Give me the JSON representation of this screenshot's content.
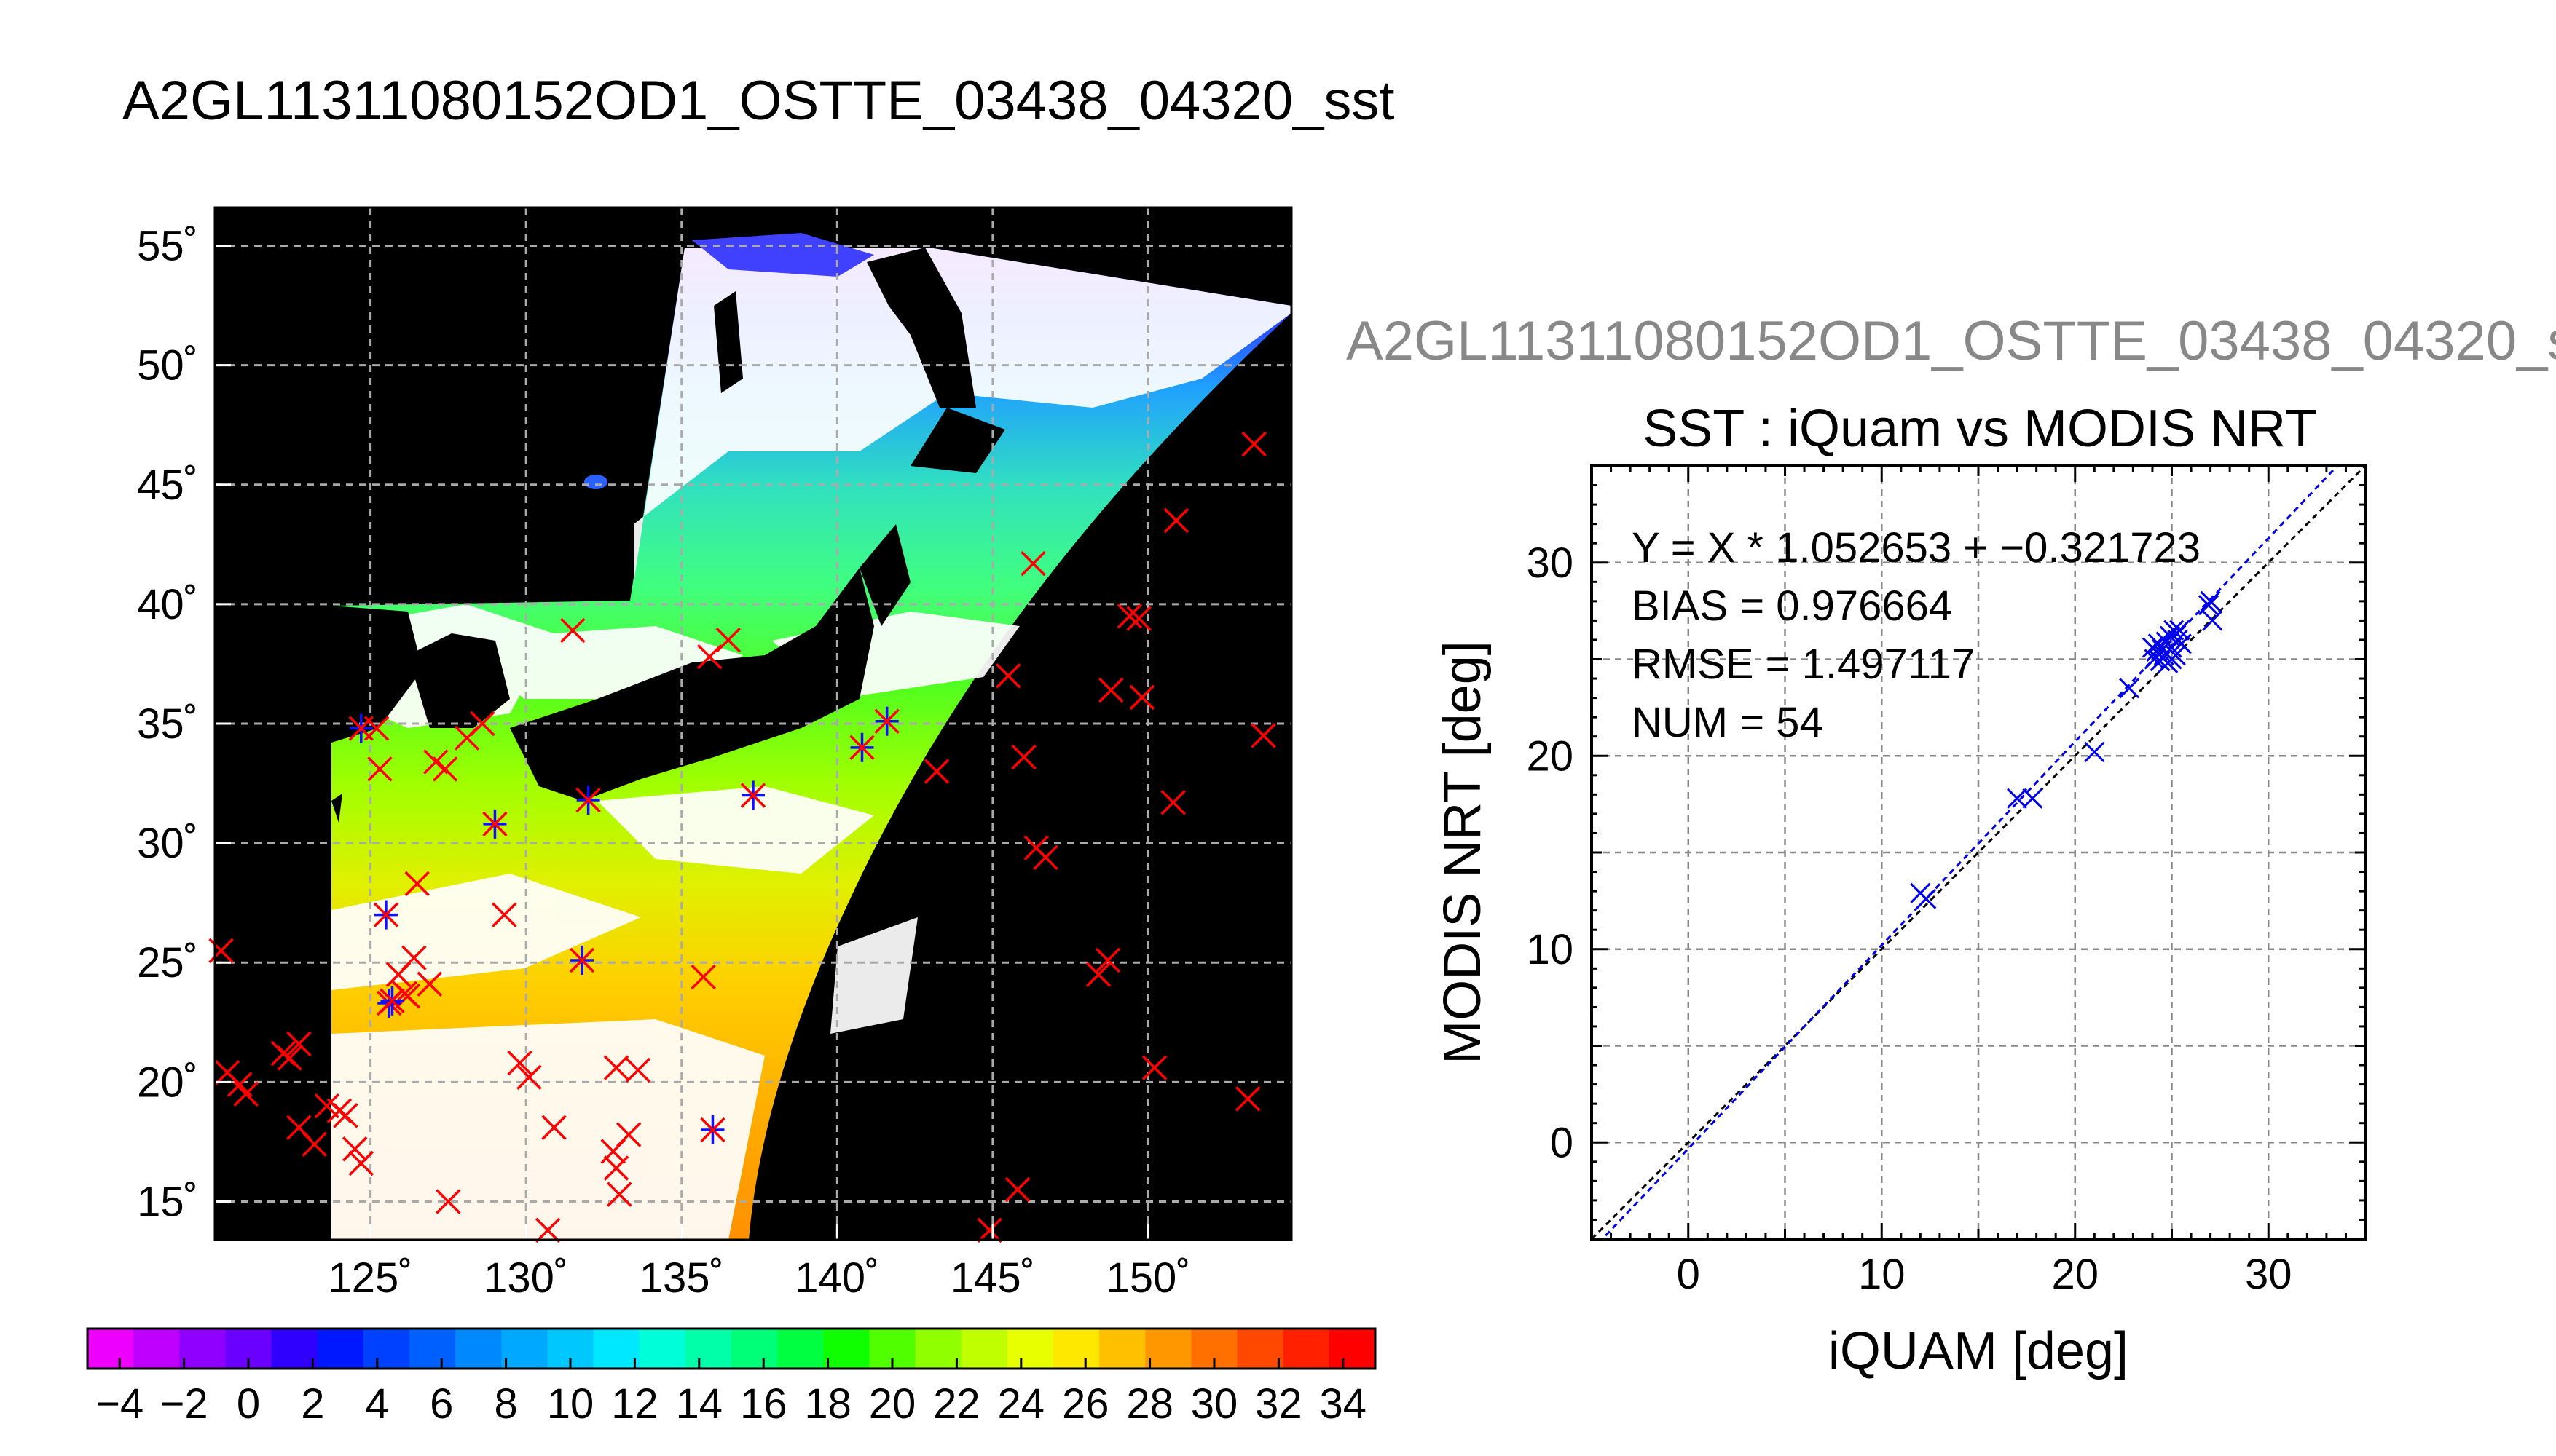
{
  "figure_title": "A2GL11311080152OD1_OSTTE_03438_04320_sst",
  "chart_data": [
    {
      "type": "heatmap",
      "title": "",
      "x_tick_labels": [
        "125˚",
        "130˚",
        "135˚",
        "140˚",
        "145˚",
        "150˚"
      ],
      "x_ticks": [
        125,
        130,
        135,
        140,
        145,
        150
      ],
      "y_tick_labels": [
        "15˚",
        "20˚",
        "25˚",
        "30˚",
        "35˚",
        "40˚",
        "45˚",
        "50˚",
        "55˚"
      ],
      "y_ticks": [
        15,
        20,
        25,
        30,
        35,
        40,
        45,
        50,
        55
      ],
      "xlim": [
        120,
        154.6
      ],
      "ylim": [
        13.4,
        56.6
      ],
      "grid": true,
      "colorbar": {
        "ticks": [
          -4,
          -2,
          0,
          2,
          4,
          6,
          8,
          10,
          12,
          14,
          16,
          18,
          20,
          22,
          24,
          26,
          28,
          30,
          32,
          34
        ],
        "tick_labels": [
          "−4",
          "−2",
          "0",
          "2",
          "4",
          "6",
          "8",
          "10",
          "12",
          "14",
          "16",
          "18",
          "20",
          "22",
          "24",
          "26",
          "28",
          "30",
          "32",
          "34"
        ],
        "range": [
          -5,
          35
        ],
        "colors": [
          "#ee00ff",
          "#c000ff",
          "#8f00ff",
          "#6a00ff",
          "#3000ff",
          "#0018ff",
          "#0040ff",
          "#0060ff",
          "#0088ff",
          "#00a8ff",
          "#00c8ff",
          "#00e8ff",
          "#00ffd8",
          "#00ffa8",
          "#00ff78",
          "#00ff40",
          "#10ff00",
          "#50ff00",
          "#90ff00",
          "#c0ff00",
          "#e8ff00",
          "#ffe800",
          "#ffc000",
          "#ff9800",
          "#ff7000",
          "#ff4800",
          "#ff2000",
          "#ff0000"
        ]
      },
      "markers": {
        "red": [
          [
            120.2,
            25.5
          ],
          [
            120.4,
            20.4
          ],
          [
            120.8,
            19.9
          ],
          [
            121.0,
            19.5
          ],
          [
            122.2,
            21.2
          ],
          [
            122.4,
            21.0
          ],
          [
            122.7,
            21.6
          ],
          [
            122.7,
            18.1
          ],
          [
            123.2,
            17.4
          ],
          [
            123.6,
            19.0
          ],
          [
            124.0,
            18.8
          ],
          [
            124.2,
            18.6
          ],
          [
            124.5,
            17.2
          ],
          [
            124.7,
            16.6
          ],
          [
            125.2,
            34.8
          ],
          [
            125.3,
            33.1
          ],
          [
            125.9,
            24.5
          ],
          [
            126.1,
            23.7
          ],
          [
            126.2,
            23.6
          ],
          [
            126.4,
            25.2
          ],
          [
            126.5,
            28.3
          ],
          [
            126.9,
            24.1
          ],
          [
            127.1,
            33.4
          ],
          [
            127.4,
            33.1
          ],
          [
            127.5,
            15.0
          ],
          [
            128.1,
            34.4
          ],
          [
            128.6,
            35.0
          ],
          [
            129.3,
            27.0
          ],
          [
            129.8,
            20.8
          ],
          [
            130.1,
            20.2
          ],
          [
            130.7,
            13.8
          ],
          [
            130.9,
            18.1
          ],
          [
            131.5,
            38.9
          ],
          [
            132.8,
            17.1
          ],
          [
            132.9,
            16.4
          ],
          [
            132.9,
            20.6
          ],
          [
            133.0,
            15.3
          ],
          [
            133.3,
            17.8
          ],
          [
            133.6,
            20.5
          ],
          [
            135.7,
            24.4
          ],
          [
            135.9,
            37.8
          ],
          [
            136.5,
            38.5
          ],
          [
            143.2,
            33.0
          ],
          [
            145.5,
            37.0
          ],
          [
            145.8,
            15.5
          ],
          [
            146.0,
            33.6
          ],
          [
            146.3,
            41.7
          ],
          [
            146.4,
            29.8
          ],
          [
            146.7,
            29.4
          ],
          [
            148.4,
            24.5
          ],
          [
            148.7,
            25.1
          ],
          [
            148.8,
            36.4
          ],
          [
            149.4,
            39.5
          ],
          [
            149.7,
            39.4
          ],
          [
            149.8,
            36.1
          ],
          [
            150.2,
            20.6
          ],
          [
            150.8,
            31.7
          ],
          [
            150.9,
            43.5
          ],
          [
            153.2,
            19.3
          ],
          [
            153.4,
            46.7
          ],
          [
            153.7,
            34.5
          ],
          [
            144.9,
            13.8
          ]
        ],
        "blue_star": [
          [
            124.7,
            34.8
          ],
          [
            125.5,
            27.0
          ],
          [
            125.6,
            23.3
          ],
          [
            125.7,
            23.4
          ],
          [
            129.0,
            30.8
          ],
          [
            131.8,
            25.1
          ],
          [
            132.0,
            31.8
          ],
          [
            136.0,
            18.0
          ],
          [
            137.3,
            32.0
          ],
          [
            140.8,
            34.0
          ],
          [
            141.6,
            35.1
          ]
        ]
      }
    },
    {
      "type": "scatter",
      "title": "SST : iQuam vs MODIS NRT",
      "subtitle": "A2GL11311080152OD1_OSTTE_03438_04320_s",
      "xlabel": "iQUAM [deg]",
      "ylabel": "MODIS NRT [deg]",
      "xlim": [
        -5,
        35
      ],
      "ylim": [
        -5,
        35
      ],
      "x_ticks": [
        0,
        10,
        20,
        30
      ],
      "y_ticks": [
        0,
        10,
        20,
        30
      ],
      "grid": true,
      "annotations": [
        "Y = X * 1.052653 + −0.321723",
        "BIAS = 0.976664",
        "RMSE = 1.497117",
        "NUM = 54"
      ],
      "fit": {
        "slope": 1.052653,
        "intercept": -0.321723
      },
      "points": [
        [
          12.0,
          12.9
        ],
        [
          12.3,
          12.6
        ],
        [
          17.0,
          17.8
        ],
        [
          17.8,
          17.8
        ],
        [
          21.0,
          20.2
        ],
        [
          22.8,
          23.5
        ],
        [
          24.0,
          25.6
        ],
        [
          24.1,
          25.0
        ],
        [
          24.2,
          25.4
        ],
        [
          24.3,
          25.8
        ],
        [
          24.4,
          24.9
        ],
        [
          24.5,
          25.5
        ],
        [
          24.6,
          25.2
        ],
        [
          24.7,
          25.9
        ],
        [
          24.8,
          24.8
        ],
        [
          24.9,
          26.2
        ],
        [
          25.0,
          25.6
        ],
        [
          25.0,
          25.0
        ],
        [
          25.1,
          26.5
        ],
        [
          25.2,
          25.2
        ],
        [
          25.3,
          26.0
        ],
        [
          25.4,
          26.5
        ],
        [
          25.5,
          25.8
        ],
        [
          27.0,
          28.0
        ],
        [
          27.1,
          27.0
        ],
        [
          26.9,
          27.8
        ]
      ]
    }
  ]
}
